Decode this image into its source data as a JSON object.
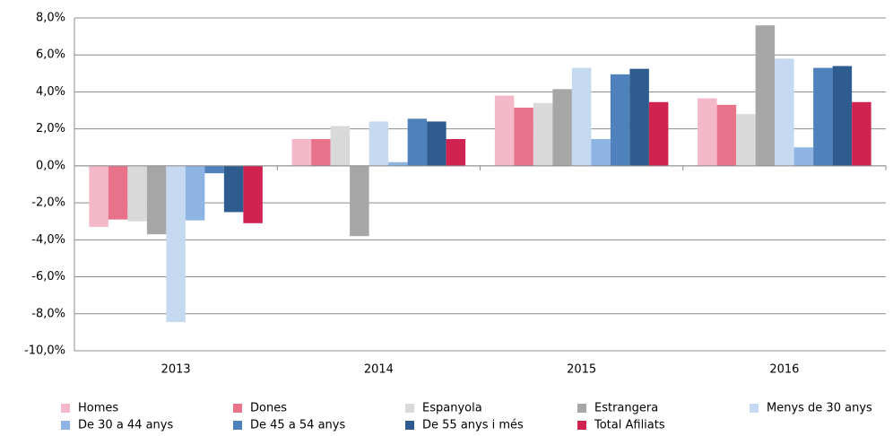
{
  "chart_data": {
    "type": "bar",
    "categories": [
      "2013",
      "2014",
      "2015",
      "2016"
    ],
    "ylim": [
      -10,
      8
    ],
    "yticks": [
      {
        "value": -10,
        "label": "-10,0%"
      },
      {
        "value": -8,
        "label": "-8,0%"
      },
      {
        "value": -6,
        "label": "-6,0%"
      },
      {
        "value": -4,
        "label": "-4,0%"
      },
      {
        "value": -2,
        "label": "-2,0%"
      },
      {
        "value": 0,
        "label": "0,0%"
      },
      {
        "value": 2,
        "label": "2,0%"
      },
      {
        "value": 4,
        "label": "4,0%"
      },
      {
        "value": 6,
        "label": "6,0%"
      },
      {
        "value": 8,
        "label": "8,0%"
      }
    ],
    "grid": true,
    "series": [
      {
        "name": "Homes",
        "color": "#f4b8c8",
        "values": [
          -3.3,
          1.45,
          3.8,
          3.65
        ]
      },
      {
        "name": "Dones",
        "color": "#e8728a",
        "values": [
          -2.9,
          1.45,
          3.15,
          3.3
        ]
      },
      {
        "name": "Espanyola",
        "color": "#d9d9d9",
        "values": [
          -3.0,
          2.15,
          3.4,
          2.8
        ]
      },
      {
        "name": "Estrangera",
        "color": "#a6a6a6",
        "values": [
          -3.7,
          -3.8,
          4.15,
          7.6
        ]
      },
      {
        "name": "Menys de 30 anys",
        "color": "#c5d9f1",
        "values": [
          -8.45,
          2.4,
          5.3,
          5.8
        ]
      },
      {
        "name": "De 30 a 44 anys",
        "color": "#8db4e2",
        "values": [
          -2.95,
          0.2,
          1.45,
          1.0
        ]
      },
      {
        "name": "De 45 a 54 anys",
        "color": "#4f81bd",
        "values": [
          -0.4,
          2.55,
          4.95,
          5.3
        ]
      },
      {
        "name": "De 55 anys i més",
        "color": "#2f5c8f",
        "values": [
          -2.5,
          2.4,
          5.25,
          5.4
        ]
      },
      {
        "name": "Total Afiliats",
        "color": "#d0234f",
        "values": [
          -3.1,
          1.45,
          3.45,
          3.45
        ]
      }
    ]
  }
}
